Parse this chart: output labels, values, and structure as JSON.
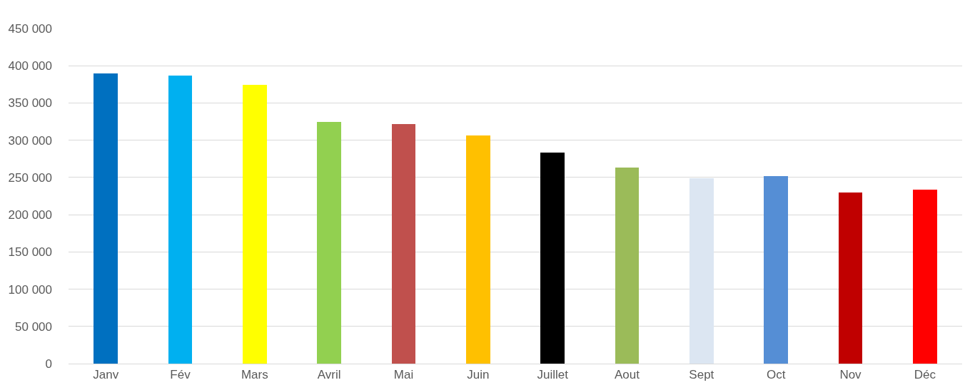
{
  "chart_data": {
    "type": "bar",
    "categories": [
      "Janv",
      "Fév",
      "Mars",
      "Avril",
      "Mai",
      "Juin",
      "Juillet",
      "Aout",
      "Sept",
      "Oct",
      "Nov",
      "Déc"
    ],
    "values": [
      390000,
      387000,
      374000,
      325000,
      322000,
      306000,
      283000,
      263000,
      249000,
      252000,
      230000,
      234000
    ],
    "colors": [
      "#0070c0",
      "#00b0f0",
      "#ffff00",
      "#92d050",
      "#c0504d",
      "#ffc000",
      "#000000",
      "#9bbb59",
      "#dce6f2",
      "#558ed5",
      "#c00000",
      "#ff0000"
    ],
    "ylim": [
      0,
      450000
    ],
    "yticks": [
      {
        "value": 0,
        "label": "0"
      },
      {
        "value": 50000,
        "label": "50 000"
      },
      {
        "value": 100000,
        "label": "100 000"
      },
      {
        "value": 150000,
        "label": "150 000"
      },
      {
        "value": 200000,
        "label": "200 000"
      },
      {
        "value": 250000,
        "label": "250 000"
      },
      {
        "value": 300000,
        "label": "300 000"
      },
      {
        "value": 350000,
        "label": "350 000"
      },
      {
        "value": 400000,
        "label": "400 000"
      },
      {
        "value": 450000,
        "label": "450 000"
      }
    ],
    "grid": "y"
  }
}
